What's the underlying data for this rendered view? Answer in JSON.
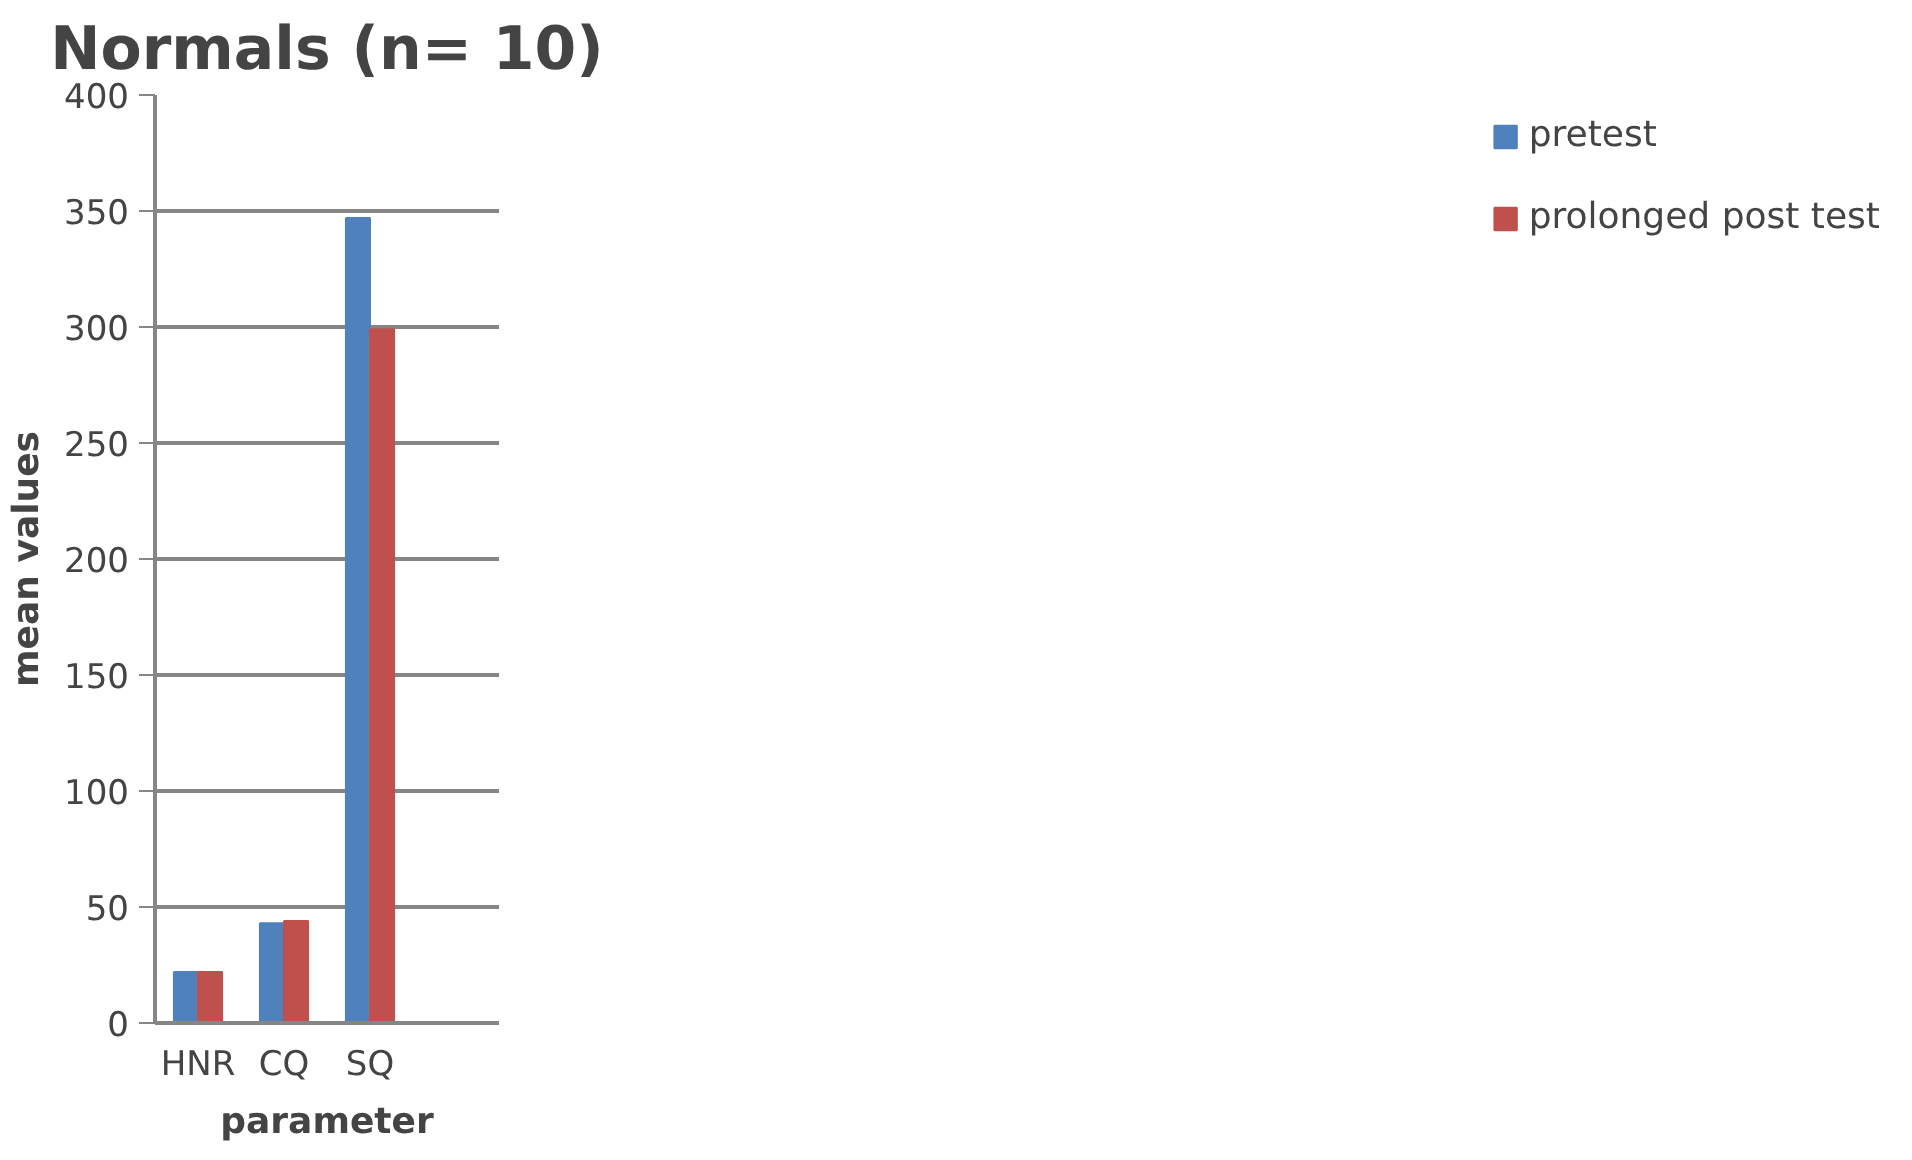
{
  "chart_data": {
    "type": "bar",
    "title": "Normals (n= 10)",
    "xlabel": "parameter",
    "ylabel": "mean values",
    "categories": [
      "HNR",
      "CQ",
      "SQ",
      null
    ],
    "series": [
      {
        "name": "pretest",
        "color": "#4f81bd",
        "values": [
          22,
          43,
          347,
          null
        ]
      },
      {
        "name": "prolonged post test",
        "color": "#c0504d",
        "values": [
          22,
          44,
          299,
          null
        ]
      }
    ],
    "ylim": [
      0,
      400
    ],
    "yticks": [
      0,
      50,
      100,
      150,
      200,
      250,
      300,
      350,
      400
    ],
    "grid": "y",
    "legend": "right"
  }
}
